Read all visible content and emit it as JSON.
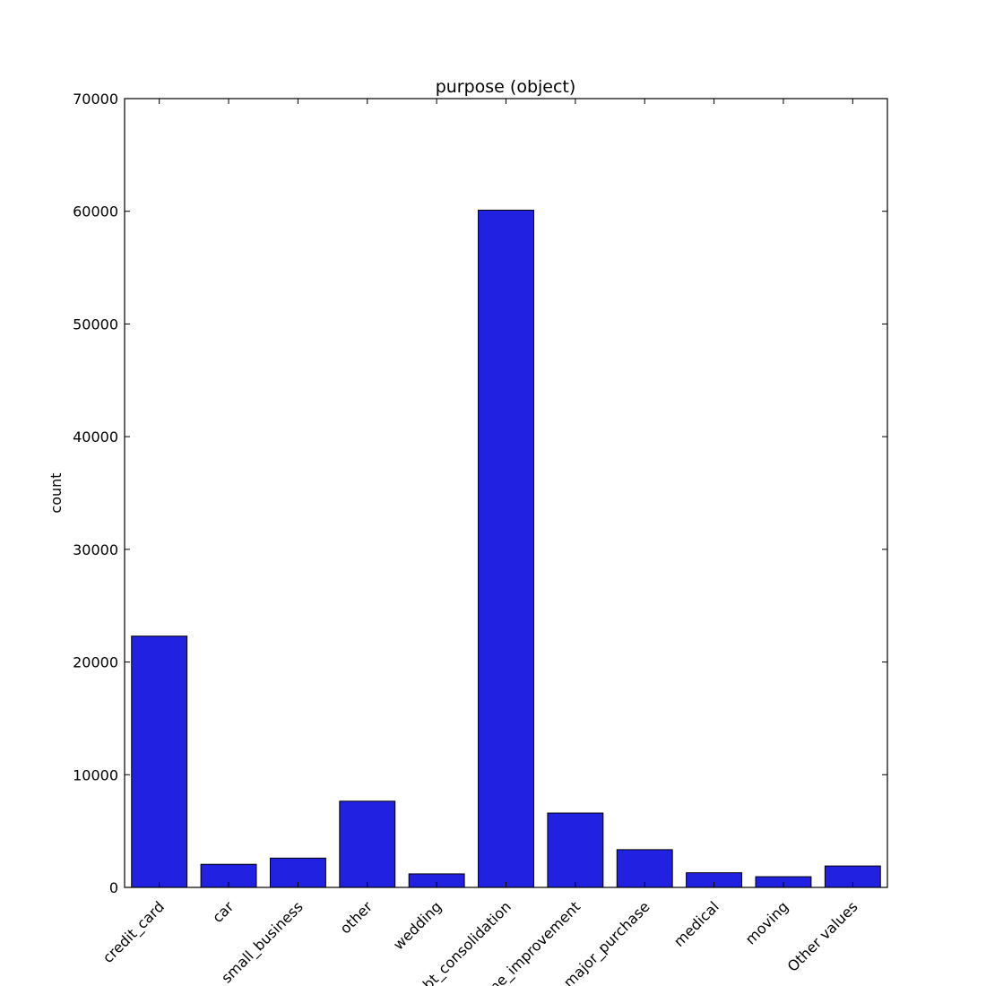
{
  "chart_data": {
    "type": "bar",
    "title": "purpose (object)",
    "xlabel": "",
    "ylabel": "count",
    "categories": [
      "credit_card",
      "car",
      "small_business",
      "other",
      "wedding",
      "debt_consolidation",
      "home_improvement",
      "major_purchase",
      "medical",
      "moving",
      "Other values"
    ],
    "values": [
      22300,
      2050,
      2600,
      7650,
      1200,
      60100,
      6600,
      3350,
      1300,
      950,
      1900
    ],
    "ylim": [
      0,
      70000
    ],
    "yticks": [
      0,
      10000,
      20000,
      30000,
      40000,
      50000,
      60000,
      70000
    ],
    "bar_color": "#2121e1",
    "grid": false,
    "legend": "none"
  }
}
